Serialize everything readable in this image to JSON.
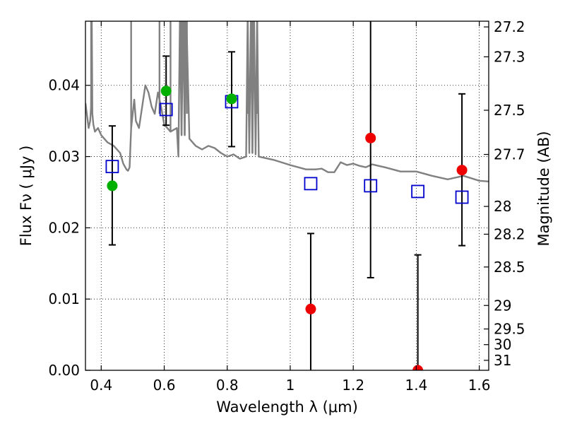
{
  "chart_data": {
    "type": "scatter",
    "xlabel": "Wavelength  λ (μm)",
    "ylabel": "Flux  Fν  ( μJy )",
    "y2label": "Magnitude (AB)",
    "xlim": [
      0.35,
      1.63
    ],
    "ylim": [
      0.0,
      0.049
    ],
    "xticks": [
      0.4,
      0.6,
      0.8,
      1.0,
      1.2,
      1.4,
      1.6
    ],
    "xtick_labels": [
      "0.4",
      "0.6",
      "0.8",
      "1",
      "1.2",
      "1.4",
      "1.6"
    ],
    "yticks": [
      0.0,
      0.01,
      0.02,
      0.03,
      0.04
    ],
    "ytick_labels": [
      "0.00",
      "0.01",
      "0.02",
      "0.03",
      "0.04"
    ],
    "y2ticks": [
      {
        "label": "27.2",
        "flux": 0.0482
      },
      {
        "label": "27.3",
        "flux": 0.044
      },
      {
        "label": "27.5",
        "flux": 0.0365
      },
      {
        "label": "27.7",
        "flux": 0.0303
      },
      {
        "label": "28",
        "flux": 0.023
      },
      {
        "label": "28.2",
        "flux": 0.0191
      },
      {
        "label": "28.5",
        "flux": 0.0145
      },
      {
        "label": "29",
        "flux": 0.0091
      },
      {
        "label": "29.5",
        "flux": 0.0058
      },
      {
        "label": "30",
        "flux": 0.0036
      },
      {
        "label": "31",
        "flux": 0.0014
      }
    ],
    "grid": true,
    "colors": {
      "model": "#808080",
      "detection": "#00b000",
      "nondetection": "#ee0000",
      "model_box": "#0000cc",
      "errorbar": "#000000"
    },
    "model_spectrum": {
      "x": [
        0.35,
        0.36,
        0.365,
        0.368,
        0.37,
        0.372,
        0.375,
        0.38,
        0.39,
        0.4,
        0.42,
        0.44,
        0.46,
        0.47,
        0.48,
        0.485,
        0.49,
        0.495,
        0.5,
        0.505,
        0.51,
        0.52,
        0.53,
        0.54,
        0.55,
        0.56,
        0.57,
        0.58,
        0.59,
        0.6,
        0.62,
        0.64,
        0.645,
        0.65,
        0.655,
        0.66,
        0.665,
        0.67,
        0.68,
        0.7,
        0.72,
        0.74,
        0.76,
        0.78,
        0.8,
        0.82,
        0.84,
        0.86,
        0.865,
        0.87,
        0.875,
        0.88,
        0.885,
        0.89,
        0.895,
        0.9,
        0.95,
        1.0,
        1.05,
        1.08,
        1.1,
        1.12,
        1.14,
        1.16,
        1.18,
        1.2,
        1.22,
        1.24,
        1.26,
        1.28,
        1.3,
        1.35,
        1.4,
        1.45,
        1.5,
        1.55,
        1.6,
        1.63
      ],
      "y": [
        0.0375,
        0.034,
        0.035,
        0.037,
        0.05,
        0.036,
        0.0345,
        0.0335,
        0.034,
        0.033,
        0.032,
        0.0315,
        0.0305,
        0.029,
        0.0282,
        0.028,
        0.0285,
        0.034,
        0.036,
        0.038,
        0.035,
        0.034,
        0.037,
        0.04,
        0.039,
        0.037,
        0.036,
        0.039,
        0.037,
        0.0345,
        0.0335,
        0.034,
        0.03,
        0.05,
        0.033,
        0.05,
        0.033,
        0.05,
        0.0325,
        0.0315,
        0.031,
        0.0315,
        0.0312,
        0.0305,
        0.03,
        0.0303,
        0.0297,
        0.03,
        0.05,
        0.0305,
        0.05,
        0.0305,
        0.05,
        0.0303,
        0.05,
        0.03,
        0.0295,
        0.0288,
        0.0282,
        0.0282,
        0.0283,
        0.0278,
        0.0278,
        0.0292,
        0.0288,
        0.029,
        0.0287,
        0.0285,
        0.0289,
        0.0287,
        0.0285,
        0.0279,
        0.0279,
        0.0273,
        0.0268,
        0.0273,
        0.0266,
        0.0265
      ],
      "spikes": [
        {
          "x": 0.368,
          "y": 0.049
        },
        {
          "x": 0.495,
          "y": 0.049
        },
        {
          "x": 0.585,
          "y": 0.049
        },
        {
          "x": 0.62,
          "y": 0.049
        },
        {
          "x": 0.655,
          "y": 0.049
        },
        {
          "x": 0.665,
          "y": 0.049
        },
        {
          "x": 0.672,
          "y": 0.049
        },
        {
          "x": 0.865,
          "y": 0.049
        },
        {
          "x": 0.88,
          "y": 0.049
        },
        {
          "x": 0.895,
          "y": 0.049
        }
      ]
    },
    "observed_detected": [
      {
        "x": 0.435,
        "y": 0.0259,
        "err_low": 0.0176,
        "err_high": 0.0343
      },
      {
        "x": 0.606,
        "y": 0.0392,
        "err_low": 0.0344,
        "err_high": 0.0441
      },
      {
        "x": 0.814,
        "y": 0.0381,
        "err_low": 0.0314,
        "err_high": 0.0447
      }
    ],
    "observed_undetected": [
      {
        "x": 1.065,
        "y": 0.0086,
        "err_low": 0.0,
        "err_high": 0.0192
      },
      {
        "x": 1.255,
        "y": 0.0326,
        "err_low": 0.013,
        "err_high": 0.049
      },
      {
        "x": 1.405,
        "y": 0.0,
        "err_low": 0.0,
        "err_high": 0.0162
      },
      {
        "x": 1.545,
        "y": 0.0281,
        "err_low": 0.0175,
        "err_high": 0.0388
      }
    ],
    "model_photometry": [
      {
        "x": 0.435,
        "y": 0.0286
      },
      {
        "x": 0.606,
        "y": 0.0366
      },
      {
        "x": 0.814,
        "y": 0.0377
      },
      {
        "x": 1.065,
        "y": 0.0262
      },
      {
        "x": 1.255,
        "y": 0.0259
      },
      {
        "x": 1.405,
        "y": 0.0251
      },
      {
        "x": 1.545,
        "y": 0.0243
      }
    ]
  }
}
